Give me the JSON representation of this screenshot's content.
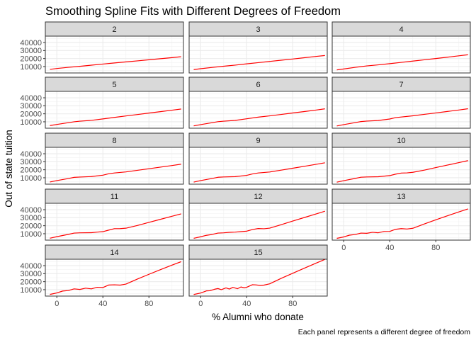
{
  "chart_data": {
    "type": "line",
    "title": "Smoothing Spline Fits with Different Degrees of Freedom",
    "xlabel": "% Alumni who donate",
    "ylabel": "Out of state tuition",
    "caption": "Each panel represents a different degree of freedom",
    "xlim": [
      -10,
      110
    ],
    "ylim": [
      2000,
      48000
    ],
    "x_ticks": [
      0,
      40,
      80
    ],
    "y_ticks": [
      10000,
      20000,
      30000,
      40000
    ],
    "grid": true,
    "line_color": "#ff0000",
    "layout": {
      "columns": 3,
      "rows": 5
    },
    "panels": [
      {
        "label": "2",
        "x": [
          -6,
          0,
          10,
          20,
          30,
          40,
          50,
          60,
          70,
          80,
          90,
          100,
          108
        ],
        "y": [
          6500,
          7600,
          9000,
          10300,
          11700,
          13100,
          14500,
          15800,
          17100,
          18500,
          19800,
          21100,
          22300
        ]
      },
      {
        "label": "3",
        "x": [
          -6,
          0,
          10,
          20,
          30,
          40,
          50,
          60,
          70,
          80,
          90,
          100,
          108
        ],
        "y": [
          6200,
          7300,
          8900,
          10400,
          11800,
          13400,
          14900,
          16400,
          17900,
          19400,
          21000,
          22600,
          23800
        ]
      },
      {
        "label": "4",
        "x": [
          -6,
          0,
          10,
          20,
          30,
          40,
          50,
          60,
          70,
          80,
          90,
          100,
          108
        ],
        "y": [
          5800,
          7000,
          9000,
          10800,
          12100,
          13600,
          15200,
          16800,
          18400,
          20000,
          21700,
          23400,
          24800
        ]
      },
      {
        "label": "5",
        "x": [
          -6,
          0,
          10,
          15,
          20,
          30,
          40,
          50,
          60,
          70,
          80,
          90,
          100,
          108
        ],
        "y": [
          5300,
          6700,
          8900,
          10000,
          10800,
          11800,
          13600,
          15500,
          17300,
          19100,
          20900,
          22700,
          24500,
          26000
        ]
      },
      {
        "label": "6",
        "x": [
          -6,
          0,
          10,
          15,
          20,
          30,
          40,
          50,
          60,
          70,
          80,
          90,
          100,
          108
        ],
        "y": [
          4900,
          6500,
          8900,
          10100,
          10800,
          11700,
          13800,
          15800,
          17400,
          19200,
          21000,
          22800,
          24600,
          26200
        ]
      },
      {
        "label": "7",
        "x": [
          -6,
          0,
          10,
          15,
          20,
          30,
          40,
          45,
          50,
          60,
          70,
          80,
          90,
          100,
          108
        ],
        "y": [
          4800,
          6500,
          9000,
          10300,
          10900,
          11600,
          13500,
          15200,
          16000,
          17500,
          19300,
          21100,
          22900,
          24700,
          26300
        ]
      },
      {
        "label": "8",
        "x": [
          -6,
          0,
          10,
          15,
          20,
          30,
          40,
          45,
          50,
          60,
          70,
          80,
          90,
          100,
          108
        ],
        "y": [
          4700,
          6500,
          9000,
          10500,
          10900,
          11500,
          13200,
          15000,
          16000,
          17300,
          19300,
          21300,
          23300,
          25300,
          27000
        ]
      },
      {
        "label": "9",
        "x": [
          -6,
          0,
          10,
          15,
          20,
          30,
          40,
          45,
          50,
          60,
          70,
          80,
          90,
          100,
          108
        ],
        "y": [
          4600,
          6500,
          9100,
          10600,
          11000,
          11400,
          13000,
          14800,
          16000,
          17200,
          19500,
          21900,
          24300,
          26700,
          28700
        ]
      },
      {
        "label": "10",
        "x": [
          -6,
          0,
          10,
          15,
          20,
          30,
          40,
          45,
          50,
          55,
          60,
          70,
          80,
          90,
          100,
          108
        ],
        "y": [
          4500,
          6400,
          9200,
          10700,
          11000,
          11300,
          12700,
          14500,
          15900,
          16100,
          16800,
          19500,
          22700,
          25800,
          28900,
          31400
        ]
      },
      {
        "label": "11",
        "x": [
          -6,
          0,
          10,
          15,
          20,
          30,
          35,
          40,
          45,
          50,
          55,
          60,
          70,
          80,
          90,
          100,
          108
        ],
        "y": [
          4400,
          6300,
          9200,
          10800,
          11100,
          11300,
          12000,
          12600,
          14500,
          16300,
          16400,
          16900,
          20300,
          24200,
          28000,
          31800,
          34800
        ]
      },
      {
        "label": "12",
        "x": [
          -6,
          0,
          5,
          10,
          15,
          20,
          25,
          30,
          35,
          40,
          45,
          50,
          55,
          60,
          70,
          80,
          90,
          100,
          108
        ],
        "y": [
          4300,
          6200,
          8000,
          9100,
          10800,
          11100,
          11700,
          12000,
          12600,
          13200,
          15200,
          16500,
          16200,
          17000,
          21300,
          25800,
          30200,
          34600,
          38100
        ]
      },
      {
        "label": "13",
        "x": [
          -6,
          0,
          5,
          10,
          15,
          20,
          25,
          30,
          35,
          40,
          45,
          50,
          55,
          60,
          70,
          80,
          90,
          100,
          108
        ],
        "y": [
          4200,
          6000,
          8200,
          9000,
          10800,
          10500,
          11800,
          11200,
          12800,
          12900,
          15500,
          16400,
          15900,
          16800,
          22200,
          27400,
          32400,
          37200,
          41000
        ]
      },
      {
        "label": "14",
        "x": [
          -6,
          0,
          5,
          10,
          15,
          20,
          25,
          30,
          35,
          40,
          45,
          50,
          55,
          60,
          70,
          80,
          90,
          100,
          108
        ],
        "y": [
          4100,
          5900,
          8300,
          8900,
          11000,
          10300,
          11900,
          11000,
          13000,
          12700,
          15800,
          16100,
          15700,
          17000,
          23300,
          29200,
          35000,
          40600,
          45000
        ]
      },
      {
        "label": "15",
        "x": [
          -6,
          0,
          5,
          8,
          12,
          15,
          18,
          22,
          25,
          28,
          32,
          35,
          38,
          40,
          45,
          48,
          52,
          55,
          60,
          70,
          80,
          90,
          100,
          108
        ],
        "y": [
          4000,
          5800,
          8500,
          8700,
          10500,
          11400,
          10000,
          12200,
          10800,
          12900,
          11200,
          13400,
          12300,
          13000,
          16200,
          16000,
          15300,
          15700,
          17300,
          24200,
          30500,
          36800,
          43000,
          47800
        ]
      }
    ]
  }
}
